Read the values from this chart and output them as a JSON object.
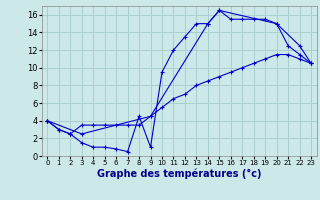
{
  "xlabel": "Graphe des températures (°c)",
  "bg_color": "#cce8e8",
  "grid_color": "#aacece",
  "line_color": "#0000cc",
  "xlim": [
    -0.5,
    23.5
  ],
  "ylim": [
    0,
    17
  ],
  "xticks": [
    0,
    1,
    2,
    3,
    4,
    5,
    6,
    7,
    8,
    9,
    10,
    11,
    12,
    13,
    14,
    15,
    16,
    17,
    18,
    19,
    20,
    21,
    22,
    23
  ],
  "yticks": [
    0,
    2,
    4,
    6,
    8,
    10,
    12,
    14,
    16
  ],
  "line1_x": [
    0,
    1,
    2,
    3,
    4,
    5,
    6,
    7,
    8,
    9,
    10,
    11,
    12,
    13,
    14,
    15,
    16,
    17,
    18,
    19,
    20,
    21,
    22,
    23
  ],
  "line1_y": [
    4,
    3,
    2.5,
    1.5,
    1,
    1,
    0.8,
    0.5,
    4.5,
    1,
    9.5,
    12,
    13.5,
    15,
    15,
    16.5,
    15.5,
    15.5,
    15.5,
    15.5,
    15,
    12.5,
    11.5,
    10.5
  ],
  "line2_x": [
    0,
    3,
    9,
    14,
    15,
    20,
    22,
    23
  ],
  "line2_y": [
    4,
    2.5,
    4.5,
    15,
    16.5,
    15,
    12.5,
    10.5
  ],
  "line3_x": [
    0,
    1,
    2,
    3,
    4,
    5,
    6,
    7,
    8,
    9,
    10,
    11,
    12,
    13,
    14,
    15,
    16,
    17,
    18,
    19,
    20,
    21,
    22,
    23
  ],
  "line3_y": [
    4,
    3,
    2.5,
    3.5,
    3.5,
    3.5,
    3.5,
    3.5,
    3.5,
    4.5,
    5.5,
    6.5,
    7,
    8,
    8.5,
    9,
    9.5,
    10,
    10.5,
    11,
    11.5,
    11.5,
    11,
    10.5
  ]
}
